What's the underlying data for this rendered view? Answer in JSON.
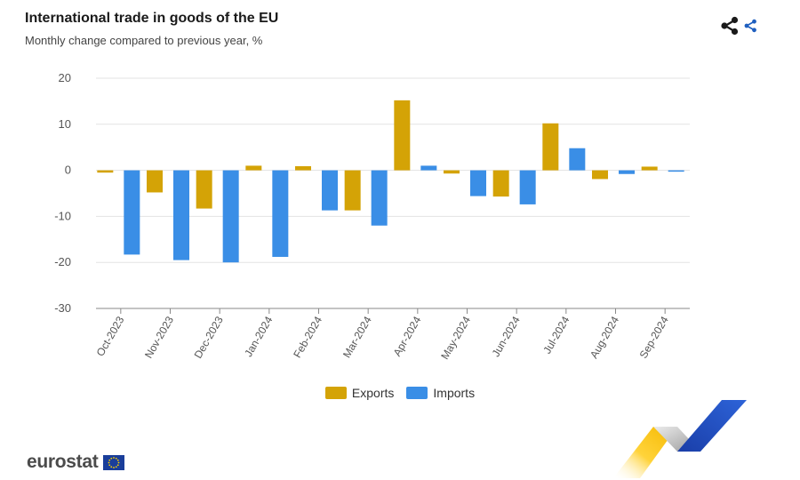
{
  "logo": {
    "text": "eurostat"
  },
  "colors": {
    "exports": "#d4a306",
    "imports": "#3a8ee6",
    "grid": "#e3e3e3",
    "axis": "#8a8a8a",
    "tick": "#555555"
  },
  "chart_data": {
    "type": "bar",
    "title": "International trade in goods of the EU",
    "subtitle": "Monthly change compared to previous year, %",
    "xlabel": "",
    "ylabel": "",
    "ylim": [
      -30,
      20
    ],
    "yticks": [
      20,
      10,
      0,
      -10,
      -20,
      -30
    ],
    "grid": true,
    "legend_position": "bottom",
    "categories": [
      "Oct-2023",
      "Nov-2023",
      "Dec-2023",
      "Jan-2024",
      "Feb-2024",
      "Mar-2024",
      "Apr-2024",
      "May-2024",
      "Jun-2024",
      "Jul-2024",
      "Aug-2024",
      "Sep-2024"
    ],
    "series": [
      {
        "name": "Exports",
        "color": "#d4a306",
        "values": [
          -0.5,
          -4.8,
          -8.3,
          1.0,
          0.9,
          -8.7,
          15.2,
          -0.7,
          -5.7,
          10.2,
          -1.9,
          0.8
        ]
      },
      {
        "name": "Imports",
        "color": "#3a8ee6",
        "values": [
          -18.3,
          -19.5,
          -20.0,
          -18.8,
          -8.7,
          -12.0,
          1.0,
          -5.6,
          -7.4,
          4.8,
          -0.8,
          -0.3
        ]
      }
    ]
  }
}
